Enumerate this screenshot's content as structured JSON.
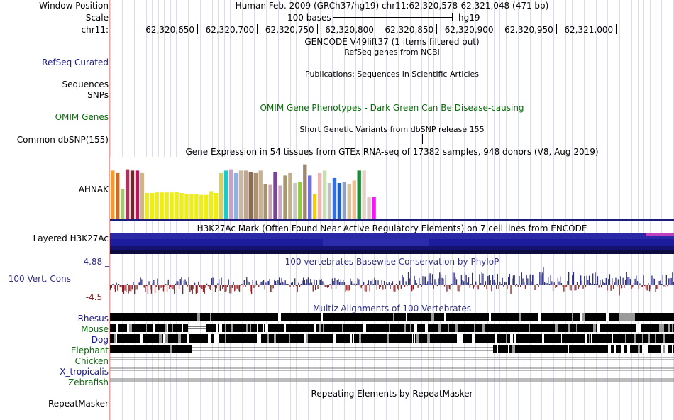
{
  "header": {
    "window_position_label": "Window Position",
    "window_position_value": "Human Feb. 2009 (GRCh37/hg19)   chr11:62,320,578-62,321,048 (471 bp)",
    "scale_label": "Scale",
    "scale_value": "100 bases",
    "scale_assembly": "hg19",
    "chrom_label": "chr11:",
    "ruler_ticks": [
      "62,320,650",
      "62,320,700",
      "62,320,750",
      "62,320,800",
      "62,320,850",
      "62,320,900",
      "62,320,950",
      "62,321,000"
    ]
  },
  "tracks": {
    "gencode_title": "GENCODE V49lift37 (1 items filtered out)",
    "refseq_title": "RefSeq genes from NCBI",
    "refseq_label": "RefSeq Curated",
    "publications_title": "Publications: Sequences in Scientific Articles",
    "sequences_label": "Sequences",
    "snps_label": "SNPs",
    "omim_title": "OMIM Gene Phenotypes - Dark Green Can Be Disease-causing",
    "omim_label": "OMIM Genes",
    "dbsnp_title": "Short Genetic Variants from dbSNP release 155",
    "dbsnp_label": "Common dbSNP(155)",
    "gtex_title": "Gene Expression in 54 tissues from GTEx RNA-seq of 17382 samples, 948 donors (V8, Aug 2019)",
    "gtex_label": "AHNAK",
    "h3k27ac_title": "H3K27Ac Mark (Often Found Near Active Regulatory Elements) on 7 cell lines from ENCODE",
    "h3k27ac_label": "Layered H3K27Ac",
    "cons_title": "100 vertebrates Basewise Conservation by PhyloP",
    "cons_label": "100 Vert. Cons",
    "cons_max": "4.88 _",
    "cons_min": "-4.5 _",
    "multiz_title": "Multiz Alignments of 100 Vertebrates",
    "species": [
      "Rhesus",
      "Mouse",
      "Dog",
      "Elephant",
      "Chicken",
      "X_tropicalis",
      "Zebrafish"
    ],
    "repeat_title": "Repeating Elements by RepeatMasker",
    "repeat_label": "RepeatMasker"
  },
  "colors": {
    "label_blue": "#1a1a8a",
    "label_green": "#0a6a0a",
    "cons_pos": "#303080",
    "cons_neg": "#8a2020",
    "h3k27ac_dark": "#1c1c9c"
  },
  "chart_data": {
    "type": "bar",
    "title": "Gene Expression in 54 tissues from GTEx RNA-seq of 17382 samples, 948 donors (V8, Aug 2019)",
    "gene": "AHNAK",
    "values": [
      78,
      74,
      48,
      80,
      78,
      78,
      74,
      42,
      42,
      43,
      43,
      43,
      43,
      44,
      42,
      41,
      40,
      40,
      39,
      39,
      45,
      42,
      74,
      78,
      80,
      74,
      78,
      78,
      76,
      74,
      78,
      56,
      55,
      76,
      54,
      70,
      74,
      58,
      60,
      88,
      70,
      40,
      74,
      78,
      58,
      66,
      58,
      60,
      56,
      62,
      78,
      78,
      36,
      36
    ],
    "colors": [
      "#f59a32",
      "#d2691e",
      "#a0c878",
      "#b03060",
      "#6b2a2a",
      "#c01060",
      "#d2b48c",
      "#eeee10",
      "#eeee10",
      "#eeee10",
      "#eeee10",
      "#eeee10",
      "#eeee10",
      "#eeee10",
      "#eeee10",
      "#eeee10",
      "#eeee10",
      "#eeee10",
      "#eeee10",
      "#eeee10",
      "#eeee10",
      "#eeee10",
      "#e0d050",
      "#20c8c8",
      "#c8a0c8",
      "#90b0e0",
      "#c8b8a0",
      "#c0a890",
      "#8b6d50",
      "#b09070",
      "#c8b090",
      "#a8906c",
      "#c8a8b0",
      "#8040a0",
      "#c8a8c8",
      "#a89870",
      "#c0b090",
      "#c8c8c8",
      "#98c840",
      "#a08870",
      "#7070e0",
      "#f0d000",
      "#f0b4b4",
      "#c8e0b0",
      "#c0c0c0",
      "#3070e0",
      "#2060c0",
      "#90a0c0",
      "#d8c0a0",
      "#f0c090",
      "#1e8a3a",
      "#e8d0c8",
      "#e0c8c8",
      "#ff10ff"
    ],
    "ylim": [
      0,
      100
    ]
  }
}
